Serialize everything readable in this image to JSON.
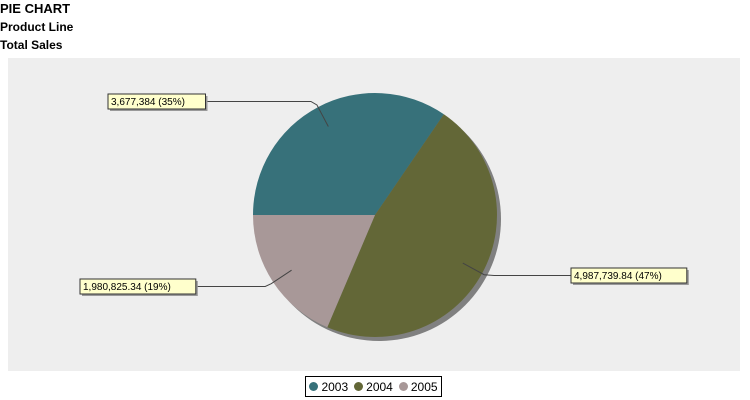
{
  "chart_data": {
    "type": "pie",
    "title": "PIE CHART",
    "subtitle": "Product Line",
    "subtitle2": "Total Sales",
    "categories": [
      "2003",
      "2004",
      "2005"
    ],
    "values": [
      3677384,
      4987739.84,
      1980825.34
    ],
    "labels": [
      "3,677,384 (35%)",
      "4,987,739.84 (47%)",
      "1,980,825.34 (19%)"
    ],
    "colors": [
      "#37717a",
      "#636737",
      "#a89898"
    ],
    "legend_position": "bottom",
    "background": "#eeeeee"
  }
}
